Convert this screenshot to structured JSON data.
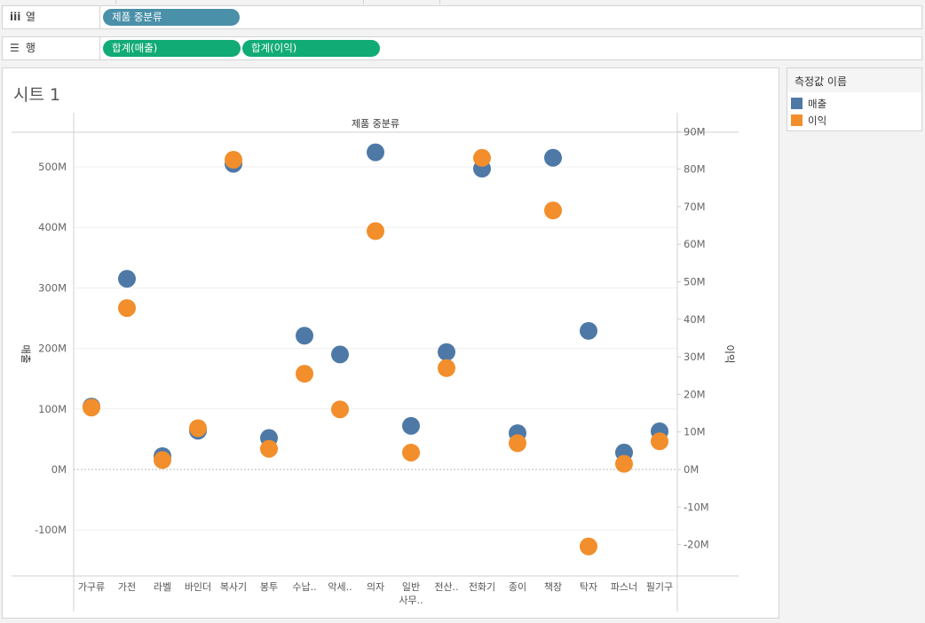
{
  "shelves": {
    "columns": {
      "label": "열",
      "pills": [
        "제품 중분류"
      ]
    },
    "rows": {
      "label": "행",
      "pills": [
        "합계(매출)",
        "합계(이익)"
      ]
    }
  },
  "sheet": {
    "title": "시트 1"
  },
  "legend": {
    "title": "측정값 이름",
    "items": [
      {
        "name": "매출",
        "color": "#4e79a7"
      },
      {
        "name": "이익",
        "color": "#f28e2b"
      }
    ]
  },
  "colors": {
    "sales": "#4e79a7",
    "profit": "#f28e2b"
  },
  "chart_data": {
    "type": "scatter",
    "header": "제품 중분류",
    "categories": [
      "가구류",
      "가전",
      "라벨",
      "바인더",
      "복사기",
      "봉투",
      "수납..",
      "악세..",
      "의자",
      "일반 사무..",
      "전산..",
      "전화기",
      "종이",
      "책장",
      "탁자",
      "파스너",
      "필기구"
    ],
    "series": [
      {
        "name": "매출",
        "axis": "left",
        "values": [
          104,
          315,
          22,
          64,
          505,
          52,
          221,
          190,
          524,
          72,
          194,
          497,
          60,
          515,
          229,
          28,
          63
        ]
      },
      {
        "name": "이익",
        "axis": "right",
        "values": [
          16.5,
          43,
          2.5,
          11,
          82.5,
          5.5,
          25.5,
          16,
          63.5,
          4.5,
          27,
          83,
          7,
          69,
          -20.5,
          1.5,
          7.5
        ]
      }
    ],
    "left_axis": {
      "label": "매출",
      "min": -175,
      "max": 560,
      "ticks": [
        -100,
        0,
        100,
        200,
        300,
        400,
        500
      ],
      "tick_labels": [
        "-100M",
        "0M",
        "100M",
        "200M",
        "300M",
        "400M",
        "500M"
      ]
    },
    "right_axis": {
      "label": "이익",
      "ticks": [
        -20,
        -10,
        0,
        10,
        20,
        30,
        40,
        50,
        60,
        70,
        80,
        90
      ],
      "tick_labels": [
        "-20M",
        "-10M",
        "0M",
        "10M",
        "20M",
        "30M",
        "40M",
        "50M",
        "60M",
        "70M",
        "80M",
        "90M"
      ]
    },
    "grid": true,
    "legend_placement": "right"
  }
}
